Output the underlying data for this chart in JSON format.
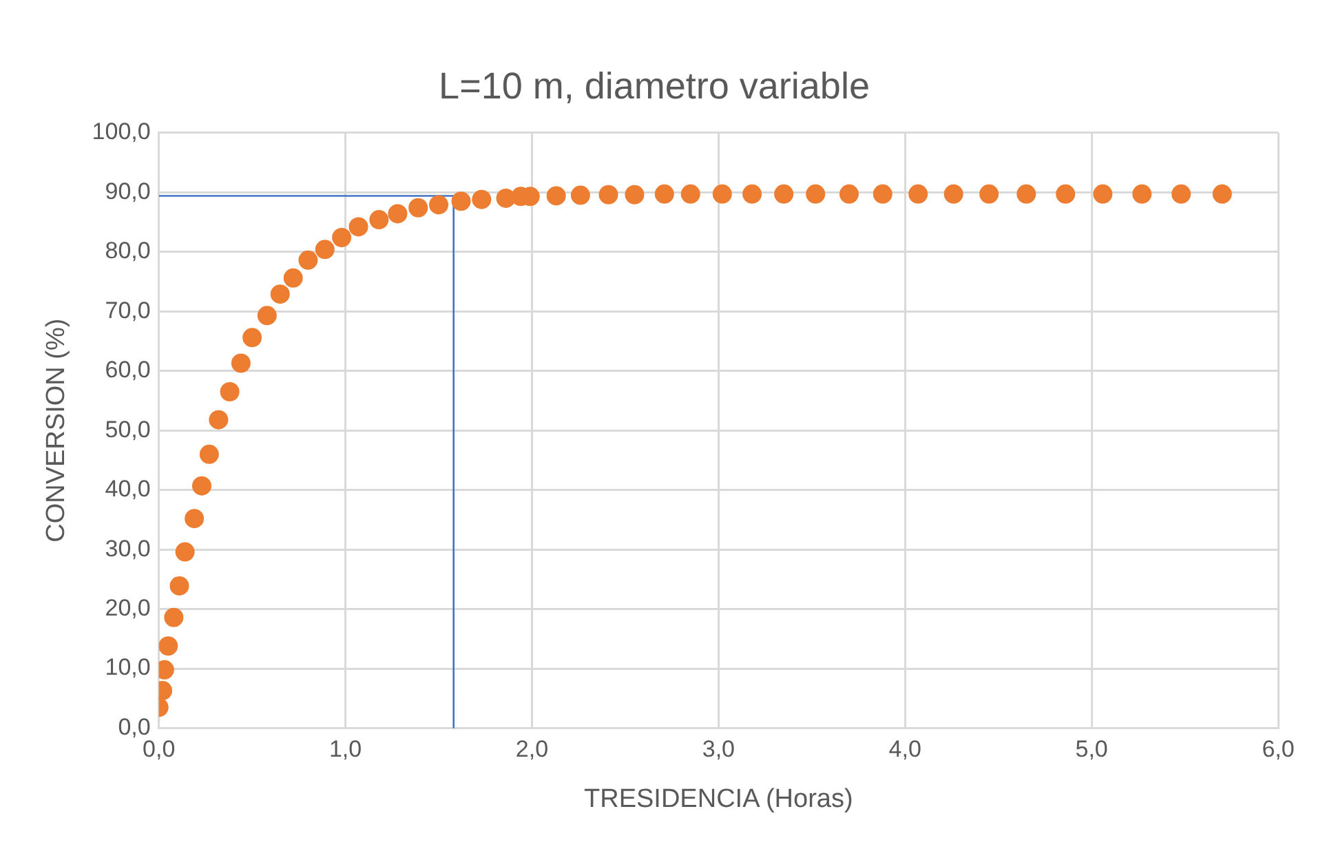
{
  "chart_data": {
    "type": "scatter",
    "title": "L=10 m, diametro variable",
    "xlabel": "TRESIDENCIA (Horas)",
    "ylabel": "CONVERSION (%)",
    "xlim": [
      0,
      6
    ],
    "xticks": [
      {
        "value": 0,
        "label": "0,0"
      },
      {
        "value": 1,
        "label": "1,0"
      },
      {
        "value": 2,
        "label": "2,0"
      },
      {
        "value": 3,
        "label": "3,0"
      },
      {
        "value": 4,
        "label": "4,0"
      },
      {
        "value": 5,
        "label": "5,0"
      },
      {
        "value": 6,
        "label": "6,0"
      }
    ],
    "ylim": [
      0,
      100
    ],
    "yticks": [
      {
        "value": 0,
        "label": "0,0"
      },
      {
        "value": 10,
        "label": "10,0"
      },
      {
        "value": 20,
        "label": "20,0"
      },
      {
        "value": 30,
        "label": "30,0"
      },
      {
        "value": 40,
        "label": "40,0"
      },
      {
        "value": 50,
        "label": "50,0"
      },
      {
        "value": 60,
        "label": "60,0"
      },
      {
        "value": 70,
        "label": "70,0"
      },
      {
        "value": 80,
        "label": "80,0"
      },
      {
        "value": 90,
        "label": "90,0"
      },
      {
        "value": 100,
        "label": "100,0"
      }
    ],
    "grid": true,
    "marker": "circle",
    "series": [
      {
        "type": "scatter",
        "color": "#ed7d31",
        "x": [
          0,
          0.02,
          0.03,
          0.05,
          0.08,
          0.11,
          0.14,
          0.19,
          0.23,
          0.27,
          0.32,
          0.38,
          0.44,
          0.5,
          0.58,
          0.65,
          0.72,
          0.8,
          0.89,
          0.98,
          1.07,
          1.18,
          1.28,
          1.39,
          1.5,
          1.62,
          1.73,
          1.86,
          1.94,
          1.99,
          2.13,
          2.26,
          2.41,
          2.55,
          2.71,
          2.85,
          3.02,
          3.18,
          3.35,
          3.52,
          3.7,
          3.88,
          4.07,
          4.26,
          4.45,
          4.65,
          4.86,
          5.06,
          5.27,
          5.48,
          5.7
        ],
        "values": [
          3.5,
          6.3,
          9.8,
          13.8,
          18.6,
          23.9,
          29.6,
          35.2,
          40.7,
          46,
          51.8,
          56.5,
          61.3,
          65.6,
          69.3,
          72.9,
          75.6,
          78.6,
          80.4,
          82.4,
          84.2,
          85.4,
          86.4,
          87.4,
          87.9,
          88.5,
          88.8,
          89,
          89.3,
          89.3,
          89.4,
          89.5,
          89.6,
          89.6,
          89.7,
          89.7,
          89.7,
          89.7,
          89.7,
          89.7,
          89.7,
          89.7,
          89.7,
          89.7,
          89.7,
          89.7,
          89.7,
          89.7,
          89.7,
          89.7,
          89.7
        ]
      },
      {
        "type": "line",
        "color": "#4472c4",
        "marker": "none",
        "line_style": "solid",
        "x": [
          0,
          1.58,
          1.58
        ],
        "values": [
          89.4,
          89.4,
          0
        ]
      }
    ]
  }
}
